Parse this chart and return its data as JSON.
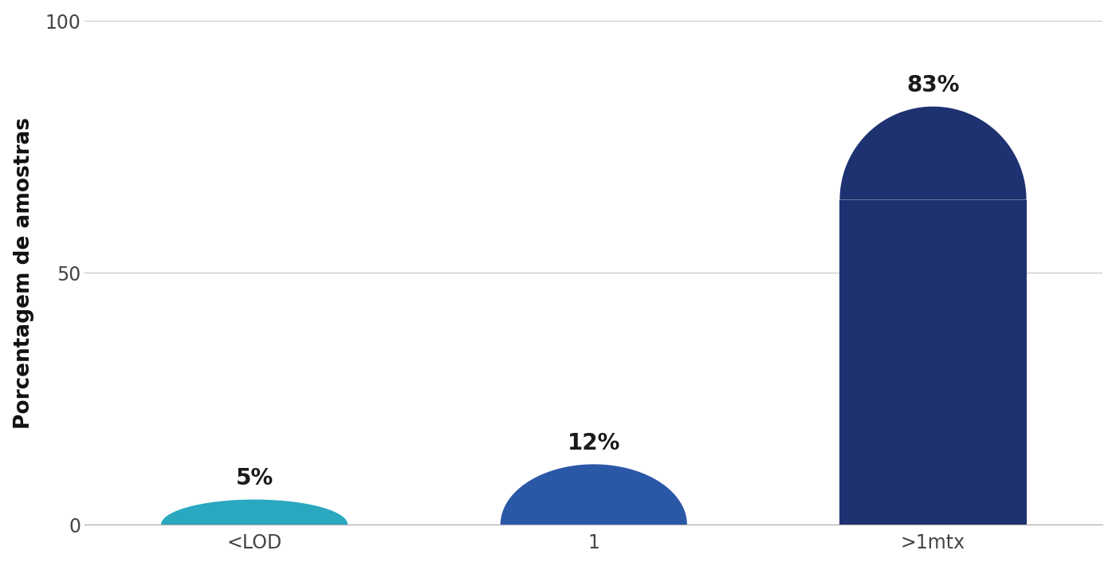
{
  "categories": [
    "<LOD",
    "1",
    ">1mtx"
  ],
  "values": [
    5,
    12,
    83
  ],
  "labels": [
    "5%",
    "12%",
    "83%"
  ],
  "bar_colors": [
    "#29a8c0",
    "#2b57a7",
    "#1e3272"
  ],
  "ylabel": "Porcentagem de amostras",
  "ylim_max": 100,
  "yticks": [
    0,
    50,
    100
  ],
  "background_color": "#ffffff",
  "grid_color": "#c8c8c8",
  "label_fontsize": 20,
  "ylabel_fontsize": 19,
  "tick_fontsize": 17,
  "bar_width": 0.55,
  "figsize": [
    14.0,
    7.1
  ],
  "dpi": 100
}
